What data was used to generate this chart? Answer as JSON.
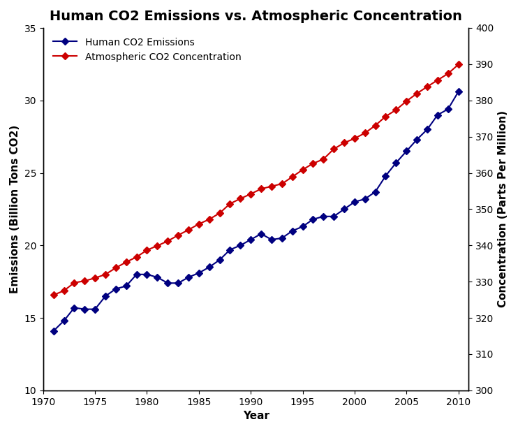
{
  "title": "Human CO2 Emissions vs. Atmospheric Concentration",
  "xlabel": "Year",
  "ylabel_left": "Emissions (Billion Tons CO2)",
  "ylabel_right": "Concentration (Parts Per Million)",
  "years": [
    1971,
    1972,
    1973,
    1974,
    1975,
    1976,
    1977,
    1978,
    1979,
    1980,
    1981,
    1982,
    1983,
    1984,
    1985,
    1986,
    1987,
    1988,
    1989,
    1990,
    1991,
    1992,
    1993,
    1994,
    1995,
    1996,
    1997,
    1998,
    1999,
    2000,
    2001,
    2002,
    2003,
    2004,
    2005,
    2006,
    2007,
    2008,
    2009,
    2010
  ],
  "emissions": [
    14.1,
    14.8,
    15.7,
    15.6,
    15.6,
    16.5,
    17.0,
    17.2,
    18.0,
    18.0,
    17.8,
    17.4,
    17.4,
    17.8,
    18.1,
    18.5,
    19.0,
    19.7,
    20.0,
    20.4,
    20.8,
    20.4,
    20.5,
    21.0,
    21.3,
    21.8,
    22.0,
    22.0,
    22.5,
    23.0,
    23.2,
    23.7,
    24.8,
    25.7,
    26.5,
    27.3,
    28.0,
    29.0,
    29.4,
    30.6
  ],
  "concentration": [
    326.3,
    327.5,
    329.7,
    330.2,
    331.0,
    332.0,
    333.8,
    335.4,
    336.8,
    338.7,
    339.9,
    341.2,
    342.8,
    344.3,
    345.9,
    347.2,
    348.9,
    351.5,
    352.9,
    354.2,
    355.6,
    356.3,
    357.0,
    358.9,
    360.9,
    362.6,
    363.8,
    366.6,
    368.3,
    369.5,
    371.0,
    373.1,
    375.6,
    377.4,
    379.8,
    381.9,
    383.8,
    385.6,
    387.4,
    389.9
  ],
  "emission_color": "#000080",
  "concentration_color": "#CC0000",
  "marker": "D",
  "markersize": 5,
  "linewidth": 1.5,
  "ylim_left": [
    10,
    35
  ],
  "ylim_right": [
    300,
    400
  ],
  "yticks_left": [
    10,
    15,
    20,
    25,
    30,
    35
  ],
  "yticks_right": [
    300,
    310,
    320,
    330,
    340,
    350,
    360,
    370,
    380,
    390,
    400
  ],
  "xticks": [
    1970,
    1975,
    1980,
    1985,
    1990,
    1995,
    2000,
    2005,
    2010
  ],
  "xlim": [
    1970,
    2011
  ],
  "legend_labels": [
    "Human CO2 Emissions",
    "Atmospheric CO2 Concentration"
  ],
  "background_color": "#ffffff",
  "title_fontsize": 14,
  "label_fontsize": 11,
  "tick_fontsize": 10,
  "legend_fontsize": 10
}
